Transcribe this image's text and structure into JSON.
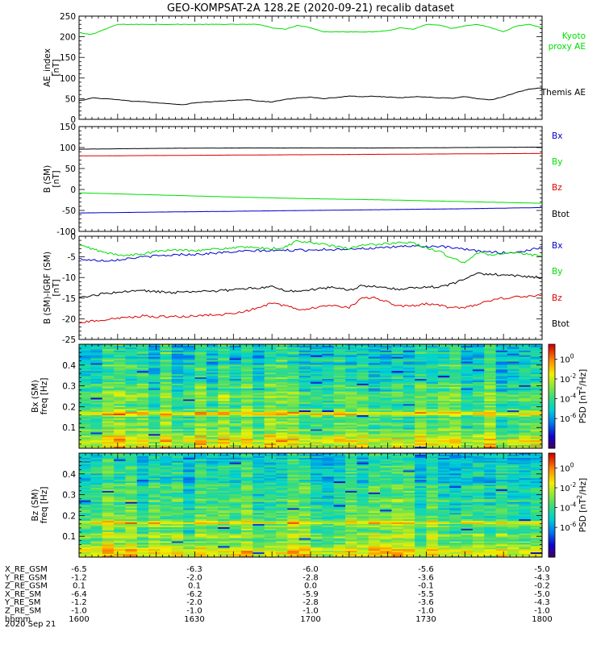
{
  "title": "GEO-KOMPSAT-2A 128.2E (2020-09-21) recalib dataset",
  "chart_data": [
    {
      "type": "line",
      "panel": "ae",
      "ylabel": [
        "AE_index",
        "[nT]"
      ],
      "ylim": [
        0,
        250
      ],
      "yticks": [
        0,
        50,
        100,
        150,
        200,
        250
      ],
      "x": [
        0,
        5,
        10,
        20,
        30,
        40,
        50,
        60,
        70,
        80,
        90,
        100,
        110,
        120,
        130,
        140,
        150,
        160,
        170,
        180,
        190,
        200,
        210,
        220,
        230,
        240,
        250,
        260,
        270,
        280,
        290,
        300,
        310,
        320,
        330,
        340,
        350,
        360
      ],
      "series": [
        {
          "name": "Kyoto proxy AE",
          "color": "#00dd00",
          "values": [
            210,
            207,
            206,
            218,
            230,
            230,
            230,
            230,
            230,
            230,
            230,
            230,
            230,
            230,
            230,
            230,
            222,
            218,
            228,
            222,
            212,
            212,
            212,
            212,
            212,
            215,
            222,
            218,
            230,
            228,
            220,
            226,
            230,
            222,
            212,
            226,
            230,
            222
          ]
        },
        {
          "name": "Themis AE",
          "color": "#000000",
          "values": [
            45,
            48,
            52,
            50,
            48,
            44,
            43,
            40,
            38,
            35,
            40,
            42,
            44,
            46,
            48,
            44,
            42,
            48,
            52,
            54,
            50,
            53,
            56,
            55,
            56,
            54,
            52,
            55,
            54,
            52,
            51,
            55,
            50,
            47,
            55,
            65,
            73,
            76
          ]
        }
      ]
    },
    {
      "type": "line",
      "panel": "b",
      "ylabel": [
        "B (SM)",
        "[nT]"
      ],
      "ylim": [
        -100,
        150
      ],
      "yticks": [
        -100,
        -50,
        0,
        50,
        100,
        150
      ],
      "x": [
        0,
        60,
        120,
        180,
        240,
        300,
        360
      ],
      "series": [
        {
          "name": "Bx",
          "color": "#0000cc",
          "values": [
            -56,
            -54,
            -52,
            -50,
            -48,
            -46,
            -43
          ]
        },
        {
          "name": "By",
          "color": "#00dd00",
          "values": [
            -8,
            -13,
            -18,
            -22,
            -25,
            -29,
            -33
          ]
        },
        {
          "name": "Bz",
          "color": "#dd0000",
          "values": [
            80,
            81,
            82,
            83,
            84,
            85,
            86
          ]
        },
        {
          "name": "Btot",
          "color": "#000000",
          "values": [
            96,
            98,
            99,
            99,
            99,
            100,
            101
          ]
        }
      ]
    },
    {
      "type": "line",
      "panel": "db",
      "ylabel": [
        "B (SM)-IGRF (SM)",
        "[nT]"
      ],
      "ylim": [
        -25,
        0
      ],
      "yticks": [
        -25,
        -20,
        -15,
        -10,
        -5,
        0
      ],
      "x": [
        0,
        10,
        20,
        30,
        40,
        50,
        60,
        70,
        80,
        90,
        100,
        110,
        120,
        130,
        140,
        150,
        160,
        170,
        180,
        190,
        200,
        210,
        220,
        230,
        240,
        250,
        260,
        270,
        280,
        290,
        300,
        310,
        320,
        330,
        340,
        350,
        360
      ],
      "series": [
        {
          "name": "Bx",
          "color": "#0000cc",
          "values": [
            -5.5,
            -5.8,
            -5.9,
            -5.7,
            -5.3,
            -5.0,
            -4.8,
            -4.6,
            -4.4,
            -4.4,
            -4.2,
            -4.0,
            -3.8,
            -3.6,
            -3.5,
            -3.5,
            -3.4,
            -3.4,
            -3.3,
            -3.2,
            -3.2,
            -3.0,
            -3.0,
            -2.9,
            -2.8,
            -2.4,
            -2.4,
            -2.5,
            -2.5,
            -2.8,
            -3.2,
            -3.6,
            -3.8,
            -4.0,
            -3.9,
            -3.4,
            -2.6
          ]
        },
        {
          "name": "By",
          "color": "#00dd00",
          "values": [
            -2.2,
            -3.0,
            -4.0,
            -4.5,
            -4.6,
            -4.3,
            -3.7,
            -3.4,
            -3.3,
            -3.4,
            -3.3,
            -3.0,
            -2.8,
            -2.7,
            -2.9,
            -3.0,
            -2.7,
            -1.0,
            -1.6,
            -2.0,
            -2.5,
            -3.0,
            -2.2,
            -2.0,
            -1.8,
            -1.4,
            -1.7,
            -2.8,
            -3.7,
            -5.3,
            -6.5,
            -4.0,
            -4.4,
            -4.3,
            -4.0,
            -4.5,
            -4.8
          ]
        },
        {
          "name": "Bz",
          "color": "#dd0000",
          "values": [
            -21.0,
            -20.5,
            -20.2,
            -20.0,
            -19.6,
            -19.3,
            -19.5,
            -19.5,
            -19.5,
            -19.3,
            -19.1,
            -19.0,
            -18.6,
            -18.2,
            -17.2,
            -16.2,
            -16.8,
            -17.8,
            -17.4,
            -17.0,
            -16.8,
            -17.2,
            -15.0,
            -14.8,
            -16.0,
            -17.0,
            -16.8,
            -16.4,
            -16.8,
            -17.4,
            -17.2,
            -16.5,
            -15.5,
            -15.0,
            -14.7,
            -14.5,
            -14.2
          ]
        },
        {
          "name": "Btot",
          "color": "#000000",
          "values": [
            -14.9,
            -14.4,
            -13.9,
            -13.6,
            -13.4,
            -13.2,
            -13.4,
            -13.6,
            -13.6,
            -13.4,
            -13.4,
            -13.2,
            -13.0,
            -12.6,
            -12.6,
            -12.0,
            -13.2,
            -13.4,
            -13.0,
            -12.6,
            -12.4,
            -13.2,
            -12.0,
            -12.2,
            -12.6,
            -12.8,
            -12.6,
            -12.2,
            -12.4,
            -11.6,
            -10.4,
            -9.0,
            -9.2,
            -9.4,
            -9.6,
            -9.8,
            -10.0
          ]
        }
      ]
    },
    {
      "type": "heatmap",
      "panel": "bx_spec",
      "ylabel": [
        "Bx (SM)",
        "freq [Hz]"
      ],
      "ylim": [
        0,
        0.5
      ],
      "yticks": [
        0.1,
        0.2,
        0.3,
        0.4
      ],
      "colorbar": {
        "label": "PSD [nT",
        "label_sup": "2",
        "label_tail": "/Hz]",
        "ticks": [
          "10",
          "10",
          "10",
          "10"
        ],
        "tick_exponents": [
          "0",
          "-2",
          "-4",
          "-6"
        ]
      }
    },
    {
      "type": "heatmap",
      "panel": "bz_spec",
      "ylabel": [
        "Bz (SM)",
        "freq [Hz]"
      ],
      "ylim": [
        0,
        0.5
      ],
      "yticks": [
        0.1,
        0.2,
        0.3,
        0.4
      ],
      "colorbar": {
        "label": "PSD [nT",
        "label_sup": "2",
        "label_tail": "/Hz]",
        "ticks": [
          "10",
          "10",
          "10",
          "10"
        ],
        "tick_exponents": [
          "0",
          "-2",
          "-4",
          "-6"
        ]
      }
    }
  ],
  "legend_labels": {
    "ae": [
      {
        "text": "Kyoto",
        "color": "#00dd00"
      },
      {
        "text": "proxy AE",
        "color": "#00dd00"
      },
      {
        "text": "Themis AE",
        "color": "#000000"
      }
    ],
    "b": [
      {
        "text": "Bx",
        "color": "#0000cc"
      },
      {
        "text": "By",
        "color": "#00dd00"
      },
      {
        "text": "Bz",
        "color": "#dd0000"
      },
      {
        "text": "Btot",
        "color": "#000000"
      }
    ],
    "db": [
      {
        "text": "Bx",
        "color": "#0000cc"
      },
      {
        "text": "By",
        "color": "#00dd00"
      },
      {
        "text": "Bz",
        "color": "#dd0000"
      },
      {
        "text": "Btot",
        "color": "#000000"
      }
    ]
  },
  "ephemeris": {
    "rows": [
      {
        "label": "X_RE_GSM",
        "values": [
          "-6.5",
          "-6.3",
          "-6.0",
          "-5.6",
          "-5.0"
        ]
      },
      {
        "label": "Y_RE_GSM",
        "values": [
          "-1.2",
          "-2.0",
          "-2.8",
          "-3.6",
          "-4.3"
        ]
      },
      {
        "label": "Z_RE_GSM",
        "values": [
          "0.1",
          "0.1",
          "0.0",
          "-0.1",
          "-0.2"
        ]
      },
      {
        "label": "X_RE_SM",
        "values": [
          "-6.4",
          "-6.2",
          "-5.9",
          "-5.5",
          "-5.0"
        ]
      },
      {
        "label": "Y_RE_SM",
        "values": [
          "-1.2",
          "-2.0",
          "-2.8",
          "-3.6",
          "-4.3"
        ]
      },
      {
        "label": "Z_RE_SM",
        "values": [
          "-1.0",
          "-1.0",
          "-1.0",
          "-1.0",
          "-1.0"
        ]
      },
      {
        "label": "hhmm",
        "values": [
          "1600",
          "1630",
          "1700",
          "1730",
          "1800"
        ]
      }
    ],
    "date": "2020 Sep 21"
  }
}
